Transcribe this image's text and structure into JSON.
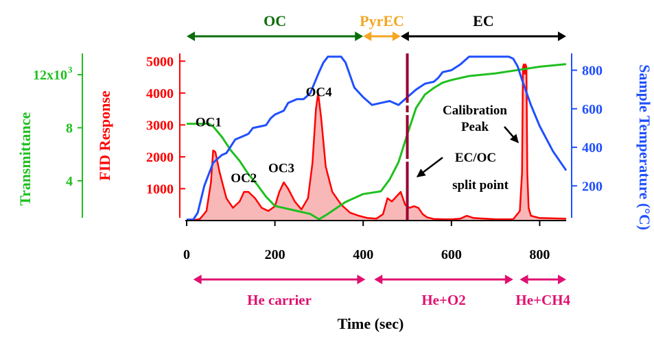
{
  "chart_data": {
    "type": "line",
    "xlabel": "Time (sec)",
    "xlim": [
      0,
      860
    ],
    "x_ticks": [
      0,
      200,
      400,
      600,
      800
    ],
    "fid": {
      "ylabel": "FID Response",
      "ylim": [
        0,
        5200
      ],
      "ticks": [
        1000,
        2000,
        3000,
        4000,
        5000
      ],
      "color": "#ff0000",
      "fill": "#f9b8b8",
      "x": [
        0,
        15,
        30,
        45,
        55,
        60,
        65,
        75,
        90,
        105,
        120,
        130,
        140,
        155,
        170,
        185,
        200,
        210,
        220,
        230,
        245,
        260,
        275,
        285,
        293,
        298,
        305,
        315,
        330,
        350,
        370,
        390,
        410,
        430,
        445,
        455,
        465,
        475,
        485,
        495,
        505,
        515,
        525,
        535,
        545,
        560,
        580,
        600,
        620,
        635,
        650,
        700,
        740,
        755,
        760,
        762,
        764,
        766,
        768,
        770,
        772,
        775,
        780,
        800,
        860
      ],
      "y": [
        0,
        10,
        50,
        300,
        1200,
        2200,
        2150,
        1500,
        700,
        400,
        600,
        900,
        900,
        700,
        400,
        300,
        450,
        900,
        1200,
        1000,
        600,
        350,
        700,
        1800,
        3500,
        4000,
        3200,
        1700,
        900,
        500,
        250,
        150,
        80,
        60,
        200,
        700,
        600,
        750,
        900,
        500,
        400,
        450,
        400,
        200,
        100,
        50,
        40,
        40,
        60,
        150,
        80,
        40,
        40,
        300,
        1500,
        4800,
        4900,
        4600,
        4900,
        4800,
        1500,
        400,
        150,
        80,
        60
      ]
    },
    "transmittance": {
      "ylabel": "Transmittance",
      "ylim": [
        1000,
        13500
      ],
      "ticks": [
        4000,
        8000,
        12000
      ],
      "tick_labels": [
        "4",
        "8",
        "12x10"
      ],
      "tick_superscript": "3",
      "color": "#1fbf1f",
      "x": [
        0,
        50,
        60,
        80,
        100,
        120,
        140,
        160,
        180,
        200,
        240,
        280,
        300,
        320,
        360,
        400,
        420,
        440,
        460,
        480,
        500,
        520,
        540,
        560,
        580,
        600,
        640,
        700,
        760,
        800,
        860
      ],
      "y": [
        8300,
        8300,
        8100,
        7300,
        6300,
        5500,
        4500,
        3700,
        2800,
        2100,
        1800,
        1500,
        1100,
        1500,
        2400,
        3000,
        3100,
        3200,
        4100,
        5400,
        7500,
        9500,
        10500,
        11000,
        11400,
        11600,
        11900,
        12100,
        12400,
        12600,
        12800
      ]
    },
    "temperature": {
      "ylabel": "Sample Temperature (°C)",
      "ylim": [
        20,
        880
      ],
      "ticks": [
        200,
        400,
        600,
        800
      ],
      "color": "#1f4fff",
      "x": [
        0,
        15,
        25,
        40,
        60,
        80,
        90,
        110,
        130,
        140,
        150,
        170,
        180,
        190,
        200,
        220,
        230,
        250,
        265,
        280,
        300,
        310,
        320,
        350,
        360,
        380,
        400,
        410,
        420,
        440,
        460,
        480,
        500,
        520,
        540,
        560,
        570,
        580,
        600,
        620,
        640,
        660,
        700,
        730,
        740,
        750,
        760,
        780,
        800,
        830,
        860
      ],
      "y": [
        25,
        25,
        60,
        200,
        320,
        360,
        370,
        440,
        460,
        470,
        500,
        510,
        515,
        550,
        570,
        590,
        630,
        650,
        650,
        680,
        790,
        840,
        870,
        870,
        840,
        710,
        660,
        640,
        620,
        630,
        640,
        620,
        660,
        700,
        730,
        740,
        760,
        790,
        800,
        830,
        870,
        870,
        870,
        870,
        860,
        820,
        750,
        620,
        510,
        380,
        280
      ]
    },
    "top_regions": [
      {
        "label": "OC",
        "from": 0,
        "to": 400,
        "color": "#0a6e0a"
      },
      {
        "label": "PyrEC",
        "from": 400,
        "to": 485,
        "color": "#f5a623"
      },
      {
        "label": "EC",
        "from": 485,
        "to": 860,
        "color": "#000000"
      }
    ],
    "bottom_regions": [
      {
        "label": "He carrier",
        "from": 15,
        "to": 405,
        "color": "#e0106f"
      },
      {
        "label": "He+O2",
        "from": 425,
        "to": 740,
        "color": "#e0106f"
      },
      {
        "label": "He+CH4",
        "from": 755,
        "to": 860,
        "color": "#e0106f"
      }
    ],
    "split_point": {
      "x": 500,
      "color": "#990033"
    },
    "peak_labels": [
      {
        "text": "OC1",
        "x": 20,
        "y": 2950
      },
      {
        "text": "OC2",
        "x": 100,
        "y": 1200
      },
      {
        "text": "OC3",
        "x": 185,
        "y": 1520
      },
      {
        "text": "OC4",
        "x": 270,
        "y": 3900
      }
    ],
    "annotations": {
      "calibration_line1": "Calibration",
      "calibration_line2": "Peak",
      "split_line1": "EC/OC",
      "split_line2": "split point"
    }
  }
}
